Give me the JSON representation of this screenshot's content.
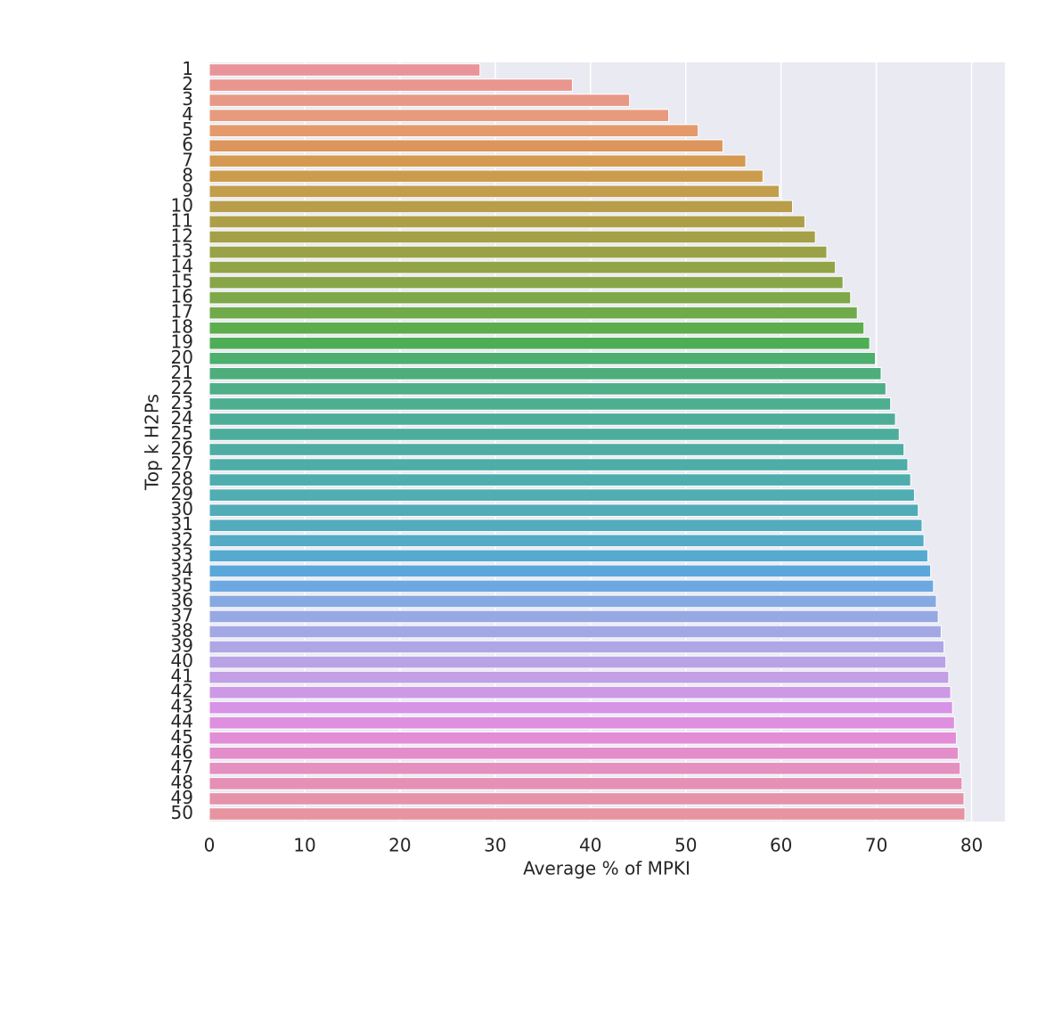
{
  "chart_data": {
    "type": "barh",
    "xlabel": "Average % of MPKI",
    "ylabel": "Top k H2Ps",
    "categories": [
      "1",
      "2",
      "3",
      "4",
      "5",
      "6",
      "7",
      "8",
      "9",
      "10",
      "11",
      "12",
      "13",
      "14",
      "15",
      "16",
      "17",
      "18",
      "19",
      "20",
      "21",
      "22",
      "23",
      "24",
      "25",
      "26",
      "27",
      "28",
      "29",
      "30",
      "31",
      "32",
      "33",
      "34",
      "35",
      "36",
      "37",
      "38",
      "39",
      "40",
      "41",
      "42",
      "43",
      "44",
      "45",
      "46",
      "47",
      "48",
      "49",
      "50"
    ],
    "values": [
      28.4,
      38.1,
      44.1,
      48.2,
      51.3,
      53.9,
      56.3,
      58.1,
      59.8,
      61.2,
      62.5,
      63.6,
      64.8,
      65.7,
      66.5,
      67.3,
      68.0,
      68.7,
      69.3,
      69.9,
      70.5,
      71.0,
      71.5,
      72.0,
      72.4,
      72.9,
      73.3,
      73.6,
      74.0,
      74.4,
      74.8,
      75.0,
      75.4,
      75.7,
      76.0,
      76.3,
      76.5,
      76.8,
      77.1,
      77.3,
      77.6,
      77.8,
      78.0,
      78.2,
      78.4,
      78.6,
      78.8,
      79.0,
      79.2,
      79.3
    ],
    "colors": [
      "#e9949b",
      "#e9968f",
      "#e89985",
      "#e89b7c",
      "#e59a6c",
      "#dc955c",
      "#d59a52",
      "#cc9c4e",
      "#c29e4c",
      "#b89e4a",
      "#ad9f48",
      "#a3a047",
      "#9aa247",
      "#92a447",
      "#88a648",
      "#7ea849",
      "#71aa4a",
      "#5ead4d",
      "#4eae55",
      "#4daf6d",
      "#4dae7c",
      "#4dae87",
      "#4dae90",
      "#4dad97",
      "#4dad9d",
      "#4eada2",
      "#4eada8",
      "#4fadad",
      "#50adb2",
      "#51acb8",
      "#52acbe",
      "#54abc6",
      "#56aad0",
      "#5aa8db",
      "#6ea8e0",
      "#86a9e1",
      "#97a9e3",
      "#a3a8e4",
      "#aea6e5",
      "#b9a3e6",
      "#c39fe6",
      "#cd99e5",
      "#d793e5",
      "#df8fe0",
      "#e28dd6",
      "#e38ecb",
      "#e490c0",
      "#e591b5",
      "#e592aa",
      "#e893a0"
    ],
    "xlim": [
      0,
      83.5
    ],
    "xticks": [
      0,
      10,
      20,
      30,
      40,
      50,
      60,
      70,
      80
    ],
    "grid": true
  }
}
